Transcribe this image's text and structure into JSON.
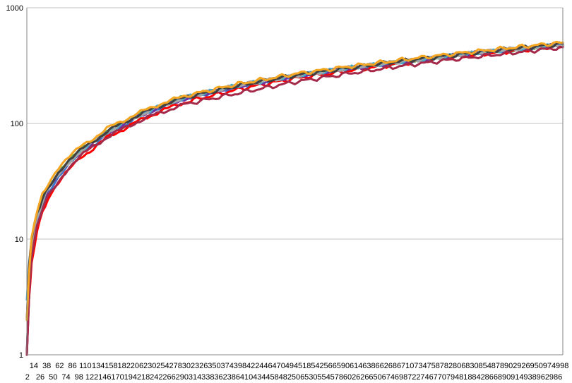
{
  "chart_data": {
    "type": "line",
    "title": "",
    "xlabel": "",
    "ylabel": "",
    "y_scale": "log",
    "ylim": [
      1,
      1000
    ],
    "xlim": [
      1,
      999
    ],
    "grid": "horizontal",
    "legend": "none",
    "y_ticks": [
      {
        "value": 1,
        "label": "1"
      },
      {
        "value": 10,
        "label": "10"
      },
      {
        "value": 100,
        "label": "100"
      },
      {
        "value": 1000,
        "label": "1000"
      }
    ],
    "x_tick_labels_upper": [
      "14",
      "38",
      "62",
      "86",
      "110",
      "134",
      "158",
      "182",
      "206",
      "230",
      "254",
      "278",
      "302",
      "326",
      "350",
      "374",
      "398",
      "422",
      "446",
      "470",
      "494",
      "518",
      "542",
      "566",
      "590",
      "614",
      "638",
      "662",
      "686",
      "710",
      "734",
      "758",
      "782",
      "806",
      "830",
      "854",
      "878",
      "902",
      "926",
      "950",
      "974",
      "998"
    ],
    "x_tick_labels_lower": [
      "2",
      "26",
      "50",
      "74",
      "98",
      "122",
      "146",
      "170",
      "194",
      "218",
      "242",
      "266",
      "290",
      "314",
      "338",
      "362",
      "386",
      "410",
      "434",
      "458",
      "482",
      "506",
      "530",
      "554",
      "578",
      "602",
      "626",
      "650",
      "674",
      "698",
      "722",
      "746",
      "770",
      "794",
      "818",
      "842",
      "866",
      "890",
      "914",
      "938",
      "962",
      "986"
    ],
    "x_tick_upper_start": 14,
    "x_tick_lower_start": 2,
    "x_tick_step": 24,
    "series": [
      {
        "color": "#70ad47",
        "x": [
          1,
          5,
          10,
          20,
          30,
          40,
          60,
          80,
          100,
          150,
          200,
          250,
          300,
          400,
          500,
          600,
          700,
          800,
          900,
          999
        ],
        "y": [
          1,
          4,
          9,
          16,
          22,
          28,
          38,
          48,
          58,
          85,
          115,
          145,
          172,
          215,
          260,
          300,
          345,
          390,
          435,
          480
        ]
      },
      {
        "color": "#4472c4",
        "x": [
          1,
          5,
          10,
          20,
          30,
          40,
          60,
          80,
          100,
          150,
          200,
          250,
          300,
          400,
          500,
          600,
          700,
          800,
          900,
          999
        ],
        "y": [
          1,
          3,
          8,
          14,
          19,
          25,
          34,
          44,
          54,
          80,
          108,
          138,
          165,
          210,
          255,
          295,
          340,
          385,
          430,
          475
        ]
      },
      {
        "color": "#ff0000",
        "x": [
          1,
          5,
          10,
          20,
          30,
          40,
          60,
          80,
          100,
          150,
          200,
          250,
          300,
          400,
          500,
          600,
          700,
          800,
          900,
          999
        ],
        "y": [
          1,
          3,
          6,
          12,
          17,
          22,
          30,
          40,
          50,
          75,
          100,
          128,
          155,
          200,
          245,
          285,
          330,
          375,
          420,
          465
        ]
      },
      {
        "color": "#7030a0",
        "x": [
          1,
          5,
          10,
          20,
          30,
          40,
          60,
          80,
          100,
          150,
          200,
          250,
          300,
          400,
          500,
          600,
          700,
          800,
          900,
          999
        ],
        "y": [
          1,
          4,
          8,
          15,
          20,
          26,
          36,
          46,
          56,
          82,
          110,
          140,
          167,
          212,
          257,
          297,
          342,
          387,
          432,
          477
        ]
      },
      {
        "color": "#4bacc6",
        "x": [
          1,
          5,
          10,
          20,
          30,
          40,
          60,
          80,
          100,
          150,
          200,
          250,
          300,
          400,
          500,
          600,
          700,
          800,
          900,
          999
        ],
        "y": [
          3,
          6,
          10,
          16,
          21,
          27,
          37,
          47,
          57,
          84,
          112,
          142,
          170,
          215,
          260,
          300,
          343,
          388,
          433,
          478
        ]
      },
      {
        "color": "#a5a5a5",
        "x": [
          1,
          5,
          10,
          20,
          30,
          40,
          60,
          80,
          100,
          150,
          200,
          250,
          300,
          400,
          500,
          600,
          700,
          800,
          900,
          999
        ],
        "y": [
          2,
          5,
          9,
          15,
          21,
          27,
          37,
          47,
          57,
          84,
          112,
          142,
          170,
          215,
          260,
          300,
          345,
          390,
          437,
          482
        ]
      },
      {
        "color": "#a52a4a",
        "x": [
          1,
          5,
          10,
          20,
          30,
          40,
          60,
          80,
          100,
          150,
          200,
          250,
          300,
          400,
          500,
          600,
          700,
          800,
          900,
          999
        ],
        "y": [
          1,
          3,
          7,
          13,
          18,
          24,
          32,
          42,
          52,
          76,
          100,
          125,
          148,
          185,
          228,
          270,
          315,
          360,
          405,
          455
        ]
      },
      {
        "color": "#404040",
        "x": [
          1,
          5,
          10,
          20,
          30,
          40,
          60,
          80,
          100,
          150,
          200,
          250,
          300,
          400,
          500,
          600,
          700,
          800,
          900,
          999
        ],
        "y": [
          2,
          6,
          10,
          17,
          22,
          28,
          38,
          48,
          58,
          85,
          113,
          143,
          170,
          215,
          260,
          302,
          347,
          392,
          440,
          487
        ]
      },
      {
        "color": "#f5a623",
        "x": [
          1,
          5,
          10,
          20,
          30,
          40,
          60,
          80,
          100,
          150,
          200,
          250,
          300,
          400,
          500,
          600,
          700,
          800,
          900,
          999
        ],
        "y": [
          2,
          5,
          10,
          18,
          24,
          30,
          41,
          51,
          62,
          90,
          118,
          148,
          175,
          222,
          268,
          310,
          355,
          402,
          450,
          500
        ]
      }
    ]
  }
}
